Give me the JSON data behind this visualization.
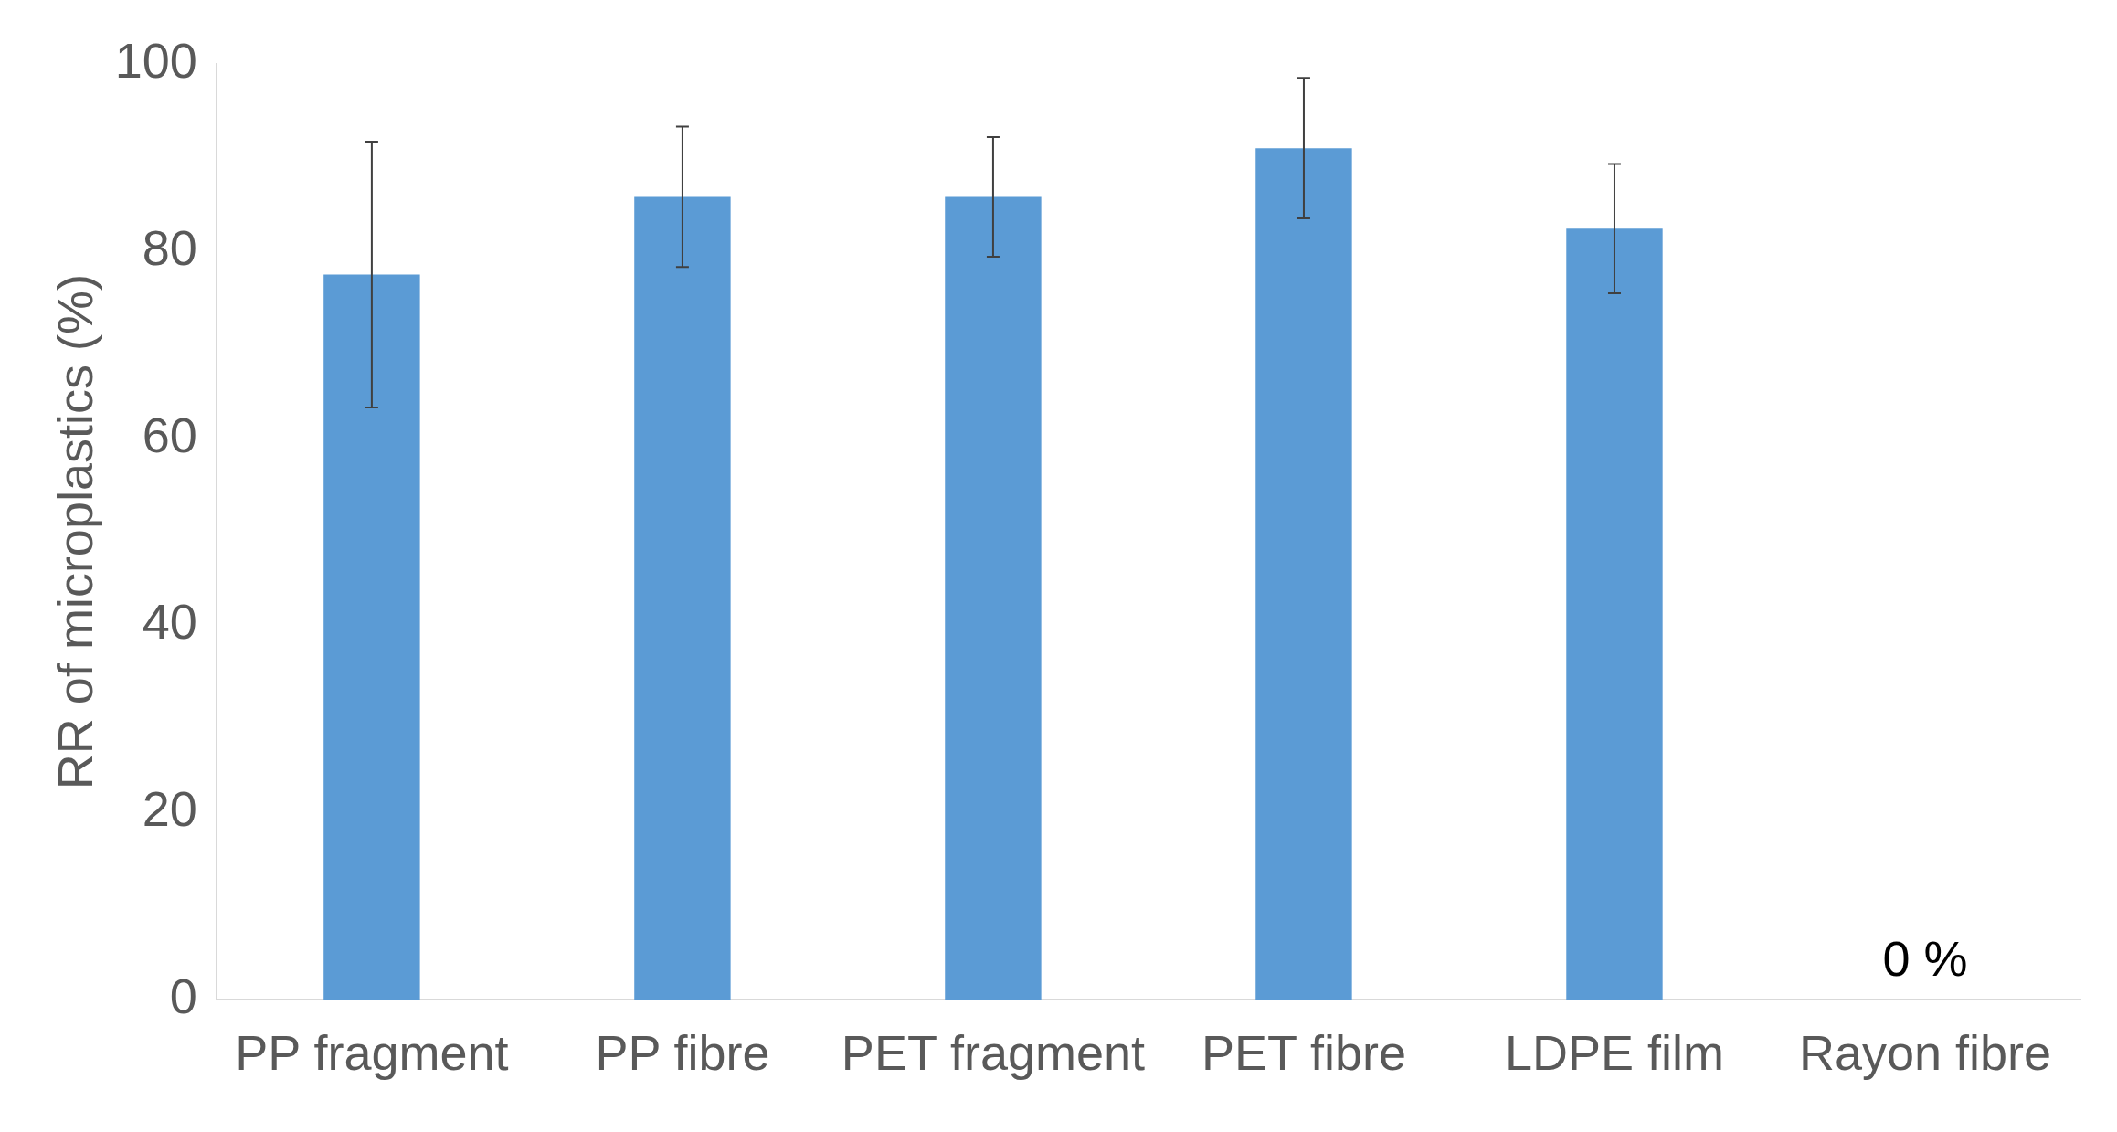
{
  "chart_data": {
    "type": "bar",
    "ylabel": "RR of microplastics (%)",
    "categories": [
      "PP fragment",
      "PP fibre",
      "PET fragment",
      "PET fibre",
      "LDPE film",
      "Rayon fibre"
    ],
    "values": [
      77.5,
      85.8,
      85.8,
      91.0,
      82.4,
      0
    ],
    "errors": [
      14.2,
      7.5,
      6.4,
      7.5,
      6.9,
      null
    ],
    "color": "#5b9bd5",
    "ylim": [
      0,
      100
    ],
    "yticks": [
      0,
      20,
      40,
      60,
      80,
      100
    ],
    "grid": false,
    "legend": false,
    "annotations": [
      {
        "text": "0 %",
        "x": "Rayon fibre",
        "y": 0
      }
    ]
  }
}
